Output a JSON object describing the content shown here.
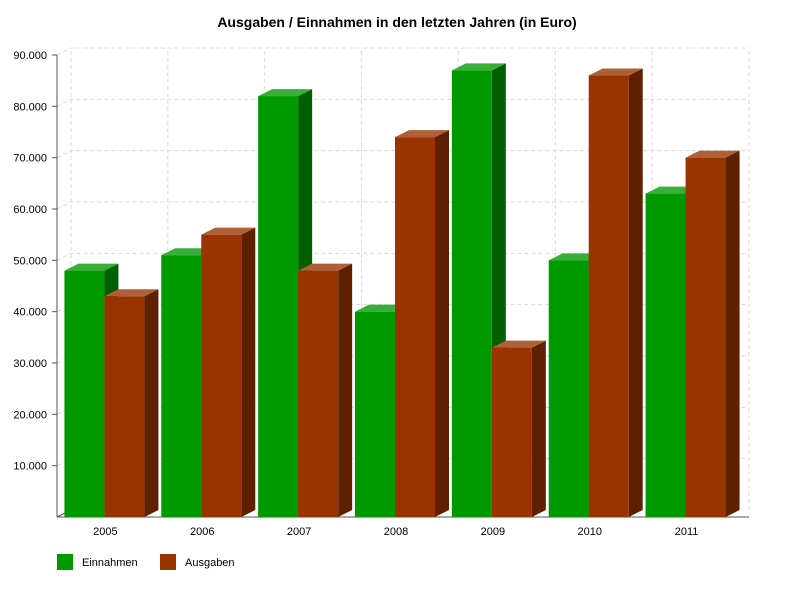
{
  "chart_data": {
    "type": "bar",
    "style": "3d",
    "title": "Ausgaben / Einnahmen in den letzten Jahren (in Euro)",
    "xlabel": "",
    "ylabel": "",
    "categories": [
      "2005",
      "2006",
      "2007",
      "2008",
      "2009",
      "2010",
      "2011"
    ],
    "series": [
      {
        "name": "Einnahmen",
        "color": "#009900",
        "values": [
          48000,
          51000,
          82000,
          40000,
          87000,
          50000,
          63000
        ]
      },
      {
        "name": "Ausgaben",
        "color": "#993300",
        "values": [
          43000,
          55000,
          48000,
          74000,
          33000,
          86000,
          70000
        ]
      }
    ],
    "ylim": [
      0,
      90000
    ],
    "yticks": [
      {
        "value": 10000,
        "label": "10.000"
      },
      {
        "value": 20000,
        "label": "20.000"
      },
      {
        "value": 30000,
        "label": "30.000"
      },
      {
        "value": 40000,
        "label": "40.000"
      },
      {
        "value": 50000,
        "label": "50.000"
      },
      {
        "value": 60000,
        "label": "60.000"
      },
      {
        "value": 70000,
        "label": "70.000"
      },
      {
        "value": 80000,
        "label": "80.000"
      },
      {
        "value": 90000,
        "label": "90.000"
      }
    ],
    "grid": true,
    "legend_position": "bottom-left"
  }
}
